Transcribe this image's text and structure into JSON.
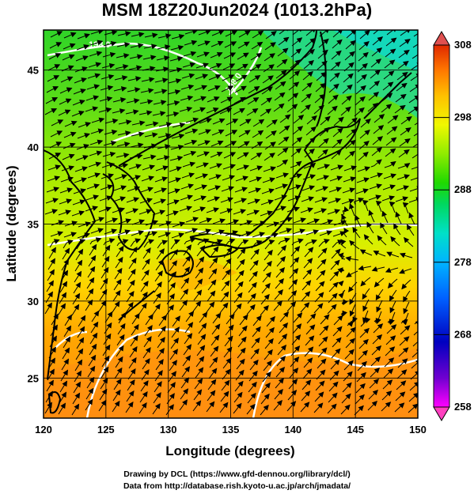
{
  "title": "MSM 18Z20Jun2024 (1013.2hPa)",
  "axes": {
    "xlabel": "Longitude (degrees)",
    "ylabel": "Latitude  (degrees)",
    "xlim": [
      120,
      150
    ],
    "ylim": [
      22.4,
      47.6
    ],
    "xticks": [
      "120",
      "125",
      "130",
      "135",
      "140",
      "145",
      "150"
    ],
    "yticks": [
      "25",
      "30",
      "35",
      "40",
      "45"
    ],
    "grid": true
  },
  "colorbar": {
    "range": [
      258,
      308
    ],
    "tick_labels": [
      "308",
      "298",
      "288",
      "278",
      "268",
      "258"
    ],
    "colors": [
      "#ff00ff",
      "#5a00d0",
      "#0000c8",
      "#0050ff",
      "#00a0ff",
      "#00d8e8",
      "#00e090",
      "#00d000",
      "#30e020",
      "#a0f000",
      "#ffff00",
      "#ffd000",
      "#ff9a00",
      "#ff6000",
      "#e03000"
    ]
  },
  "contour_labels": [
    "198.0",
    "198.0",
    "292.0"
  ],
  "credits": {
    "line1": "Drawing by DCL (https://www.gfd-dennou.org/library/dcl/)",
    "line2": "Data from http://database.rish.kyoto-u.ac.jp/arch/jmadata/"
  }
}
